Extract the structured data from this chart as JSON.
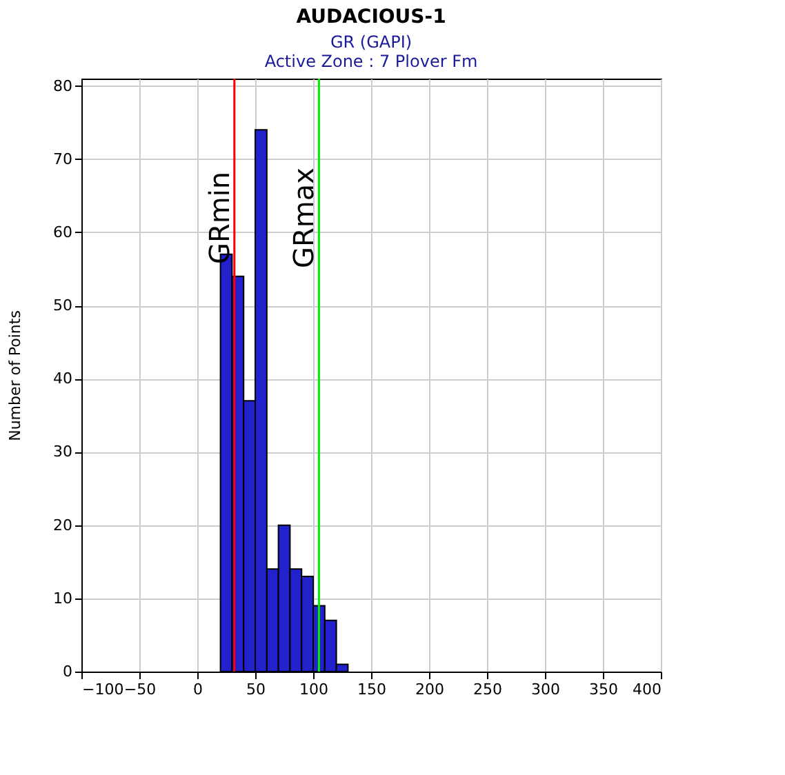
{
  "chart_data": {
    "type": "histogram",
    "title": "AUDACIOUS-1",
    "subtitle": "GR (GAPI)",
    "annotations": [
      "Active Zone : 7  Plover Fm"
    ],
    "ylabel": "Number of Points",
    "bins": [
      20,
      30,
      40,
      50,
      60,
      70,
      80,
      90,
      100,
      110,
      120,
      130
    ],
    "values": [
      57,
      54,
      37,
      74,
      14,
      20,
      14,
      13,
      9,
      7,
      1
    ],
    "color": "#2222cc",
    "xlim": [
      -100,
      400
    ],
    "xticks": [
      -100,
      -50,
      0,
      50,
      100,
      150,
      200,
      250,
      300,
      350,
      400
    ],
    "ylim": [
      0,
      81
    ],
    "yticks": [
      0,
      10,
      20,
      30,
      40,
      50,
      60,
      70,
      80
    ],
    "grid": true,
    "ref_lines": [
      {
        "axis": "x",
        "value": 32,
        "label": "GRmin",
        "color": "#ff0000"
      },
      {
        "axis": "x",
        "value": 105,
        "label": "GRmax",
        "color": "#00ee00"
      }
    ]
  }
}
